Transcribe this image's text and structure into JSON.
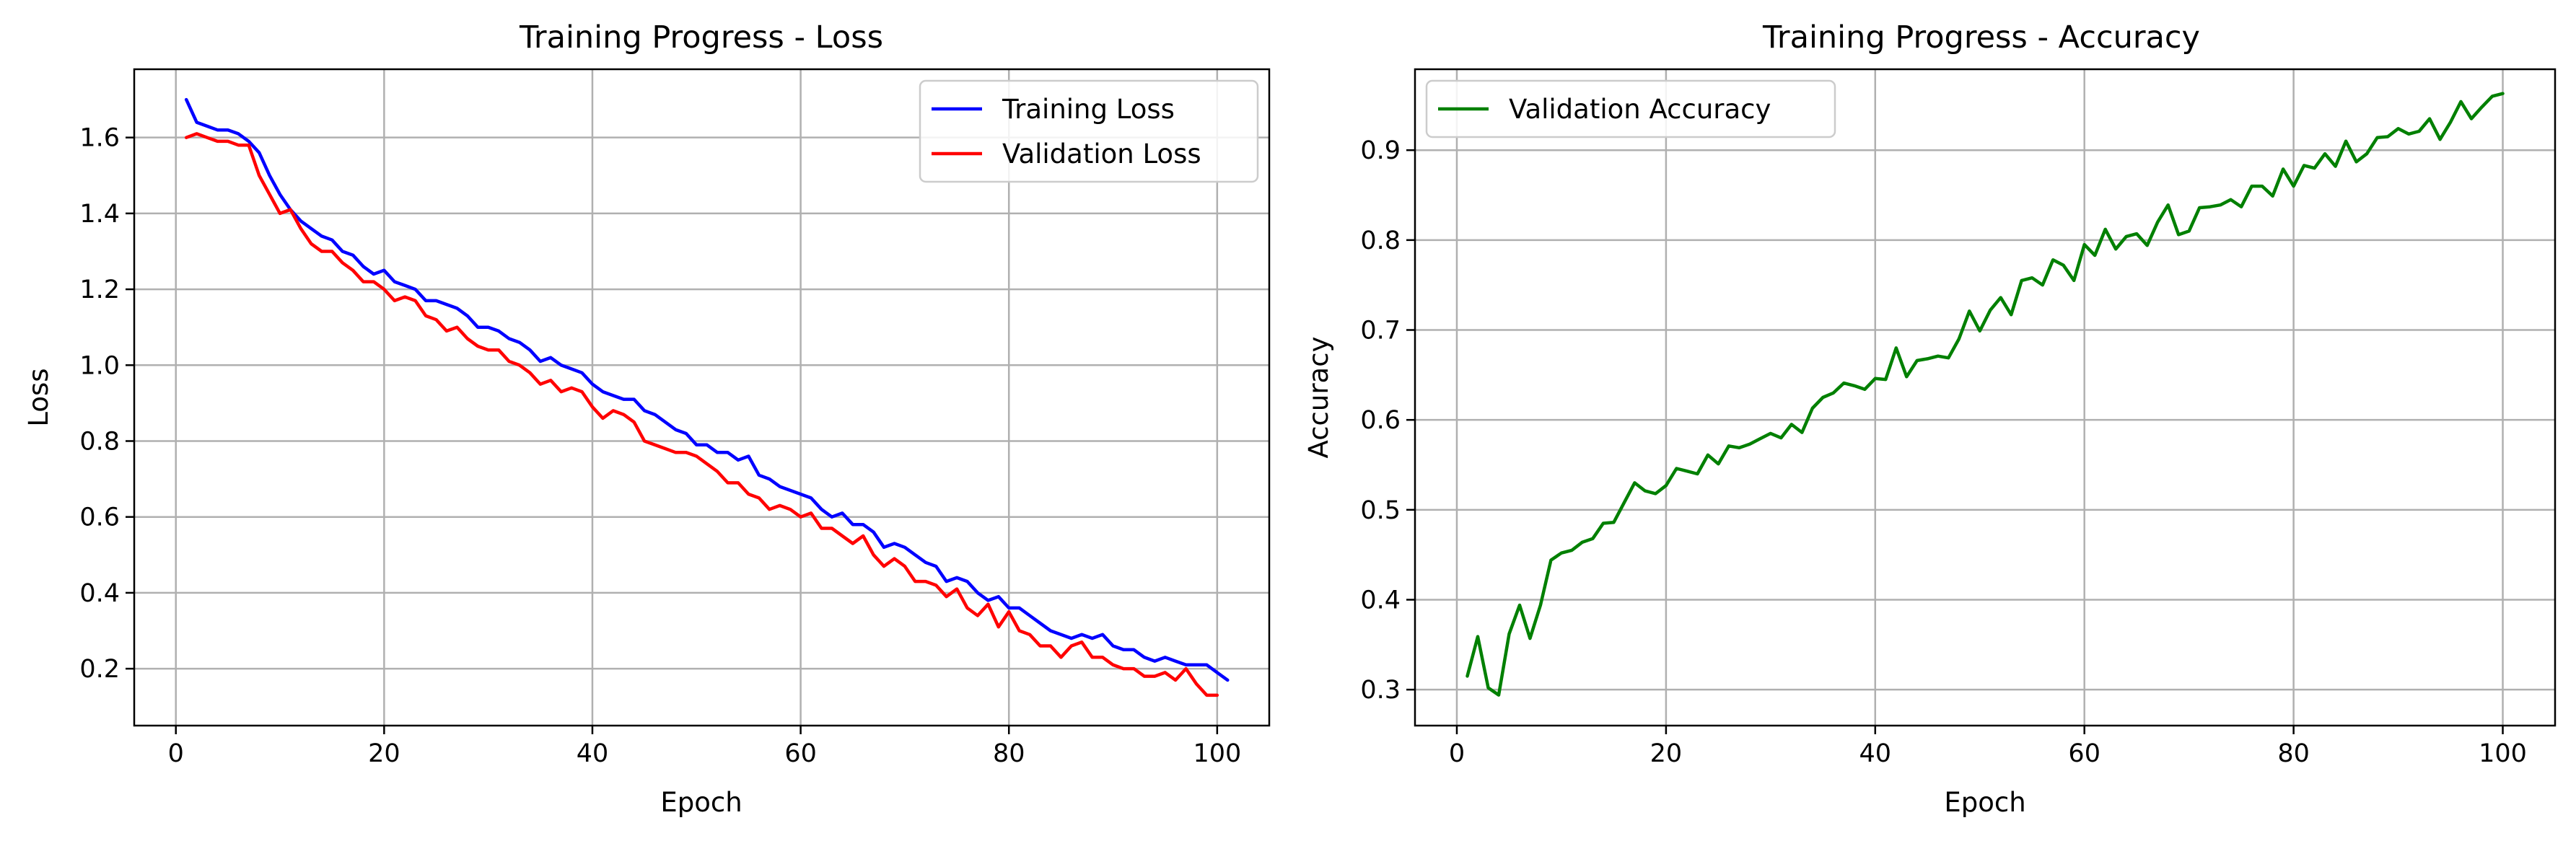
{
  "chart_data": [
    {
      "type": "line",
      "title": "Training Progress - Loss",
      "xlabel": "Epoch",
      "ylabel": "Loss",
      "xlim": [
        -4,
        105
      ],
      "ylim": [
        0.05,
        1.78
      ],
      "xticks": [
        0,
        20,
        40,
        60,
        80,
        100
      ],
      "yticks": [
        0.2,
        0.4,
        0.6,
        0.8,
        1.0,
        1.2,
        1.4,
        1.6
      ],
      "ytick_labels": [
        "0.2",
        "0.4",
        "0.6",
        "0.8",
        "1.0",
        "1.2",
        "1.4",
        "1.6"
      ],
      "grid": true,
      "legend_position": "top-right",
      "x_start": 1,
      "series": [
        {
          "name": "Training Loss",
          "color": "#0000ff",
          "values": [
            1.7,
            1.64,
            1.63,
            1.62,
            1.62,
            1.61,
            1.59,
            1.56,
            1.5,
            1.45,
            1.41,
            1.38,
            1.36,
            1.34,
            1.33,
            1.3,
            1.29,
            1.26,
            1.24,
            1.25,
            1.22,
            1.21,
            1.2,
            1.17,
            1.17,
            1.16,
            1.15,
            1.13,
            1.1,
            1.1,
            1.09,
            1.07,
            1.06,
            1.04,
            1.01,
            1.02,
            1.0,
            0.99,
            0.98,
            0.95,
            0.93,
            0.92,
            0.91,
            0.91,
            0.88,
            0.87,
            0.85,
            0.83,
            0.82,
            0.79,
            0.79,
            0.77,
            0.77,
            0.75,
            0.76,
            0.71,
            0.7,
            0.68,
            0.67,
            0.66,
            0.65,
            0.62,
            0.6,
            0.61,
            0.58,
            0.58,
            0.56,
            0.52,
            0.53,
            0.52,
            0.5,
            0.48,
            0.47,
            0.43,
            0.44,
            0.43,
            0.4,
            0.38,
            0.39,
            0.36,
            0.36,
            0.34,
            0.32,
            0.3,
            0.29,
            0.28,
            0.29,
            0.28,
            0.29,
            0.26,
            0.25,
            0.25,
            0.23,
            0.22,
            0.23,
            0.22,
            0.21,
            0.21,
            0.21,
            0.19,
            0.17
          ]
        },
        {
          "name": "Validation Loss",
          "color": "#ff0000",
          "values": [
            1.6,
            1.61,
            1.6,
            1.59,
            1.59,
            1.58,
            1.58,
            1.5,
            1.45,
            1.4,
            1.41,
            1.36,
            1.32,
            1.3,
            1.3,
            1.27,
            1.25,
            1.22,
            1.22,
            1.2,
            1.17,
            1.18,
            1.17,
            1.13,
            1.12,
            1.09,
            1.1,
            1.07,
            1.05,
            1.04,
            1.04,
            1.01,
            1.0,
            0.98,
            0.95,
            0.96,
            0.93,
            0.94,
            0.93,
            0.89,
            0.86,
            0.88,
            0.87,
            0.85,
            0.8,
            0.79,
            0.78,
            0.77,
            0.77,
            0.76,
            0.74,
            0.72,
            0.69,
            0.69,
            0.66,
            0.65,
            0.62,
            0.63,
            0.62,
            0.6,
            0.61,
            0.57,
            0.57,
            0.55,
            0.53,
            0.55,
            0.5,
            0.47,
            0.49,
            0.47,
            0.43,
            0.43,
            0.42,
            0.39,
            0.41,
            0.36,
            0.34,
            0.37,
            0.31,
            0.35,
            0.3,
            0.29,
            0.26,
            0.26,
            0.23,
            0.26,
            0.27,
            0.23,
            0.23,
            0.21,
            0.2,
            0.2,
            0.18,
            0.18,
            0.19,
            0.17,
            0.2,
            0.16,
            0.13,
            0.13
          ]
        }
      ]
    },
    {
      "type": "line",
      "title": "Training Progress - Accuracy",
      "xlabel": "Epoch",
      "ylabel": "Accuracy",
      "xlim": [
        -4,
        105
      ],
      "ylim": [
        0.26,
        0.99
      ],
      "xticks": [
        0,
        20,
        40,
        60,
        80,
        100
      ],
      "yticks": [
        0.3,
        0.4,
        0.5,
        0.6,
        0.7,
        0.8,
        0.9
      ],
      "ytick_labels": [
        "0.3",
        "0.4",
        "0.5",
        "0.6",
        "0.7",
        "0.8",
        "0.9"
      ],
      "grid": true,
      "legend_position": "top-left",
      "x_start": 1,
      "series": [
        {
          "name": "Validation Accuracy",
          "color": "#008000",
          "values": [
            0.315,
            0.359,
            0.302,
            0.294,
            0.362,
            0.394,
            0.357,
            0.394,
            0.444,
            0.452,
            0.455,
            0.464,
            0.468,
            0.485,
            0.486,
            0.508,
            0.53,
            0.521,
            0.518,
            0.527,
            0.546,
            0.543,
            0.54,
            0.561,
            0.551,
            0.571,
            0.569,
            0.573,
            0.579,
            0.585,
            0.58,
            0.595,
            0.586,
            0.613,
            0.625,
            0.63,
            0.641,
            0.638,
            0.634,
            0.646,
            0.645,
            0.68,
            0.648,
            0.666,
            0.668,
            0.671,
            0.669,
            0.69,
            0.721,
            0.699,
            0.722,
            0.736,
            0.717,
            0.755,
            0.758,
            0.75,
            0.778,
            0.772,
            0.755,
            0.795,
            0.783,
            0.812,
            0.79,
            0.804,
            0.807,
            0.794,
            0.82,
            0.839,
            0.806,
            0.81,
            0.836,
            0.837,
            0.839,
            0.845,
            0.837,
            0.86,
            0.86,
            0.849,
            0.879,
            0.86,
            0.883,
            0.88,
            0.896,
            0.882,
            0.91,
            0.887,
            0.896,
            0.914,
            0.915,
            0.924,
            0.918,
            0.921,
            0.935,
            0.912,
            0.931,
            0.954,
            0.935,
            0.948,
            0.96,
            0.963
          ]
        }
      ]
    }
  ]
}
